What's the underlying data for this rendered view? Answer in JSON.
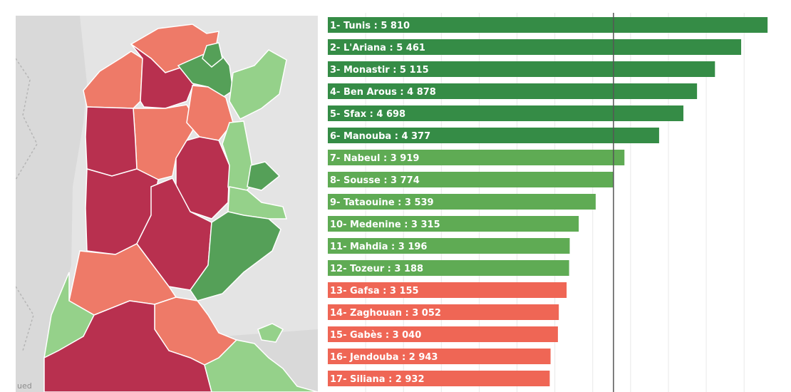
{
  "map": {
    "credit": "ued",
    "region_colors": {
      "dark_green": "#55a058",
      "light_green": "#95d18a",
      "salmon": "#ee7a68",
      "crimson": "#b8304f",
      "background": "#e4e4e4"
    }
  },
  "chart_data": {
    "type": "bar",
    "orientation": "horizontal",
    "categories": [
      "Tunis",
      "L'Ariana",
      "Monastir",
      "Ben Arous",
      "Sfax",
      "Manouba",
      "Nabeul",
      "Sousse",
      "Tataouine",
      "Medenine",
      "Mahdia",
      "Tozeur",
      "Gafsa",
      "Zaghouan",
      "Gabès",
      "Jendouba",
      "Siliana"
    ],
    "labels": [
      "1- Tunis : 5 810",
      "2- L'Ariana : 5 461",
      "3- Monastir : 5 115",
      "4- Ben Arous : 4 878",
      "5- Sfax : 4 698",
      "6- Manouba : 4 377",
      "7- Nabeul : 3 919",
      "8- Sousse : 3 774",
      "9- Tataouine : 3 539",
      "10- Medenine : 3 315",
      "11- Mahdia : 3 196",
      "12- Tozeur : 3 188",
      "13- Gafsa : 3 155",
      "14- Zaghouan : 3 052",
      "15- Gabès : 3 040",
      "16- Jendouba : 2 943",
      "17- Siliana : 2 932"
    ],
    "values": [
      5810,
      5461,
      5115,
      4878,
      4698,
      4377,
      3919,
      3774,
      3539,
      3315,
      3196,
      3188,
      3155,
      3052,
      3040,
      2943,
      2932
    ],
    "bar_colors": [
      "#358c46",
      "#358c46",
      "#358c46",
      "#358c46",
      "#358c46",
      "#358c46",
      "#5fab54",
      "#5fab54",
      "#5fab54",
      "#5fab54",
      "#5fab54",
      "#5fab54",
      "#ef6655",
      "#ef6655",
      "#ef6655",
      "#ef6655",
      "#ef6655"
    ],
    "xlim": [
      0,
      5950
    ],
    "reference_line": 3774,
    "grid": true
  }
}
